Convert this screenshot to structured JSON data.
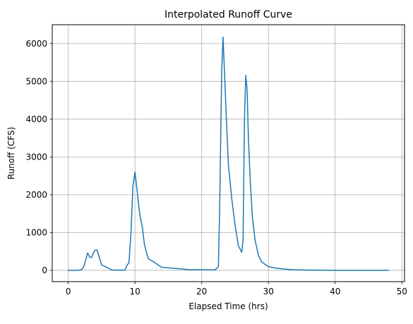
{
  "chart_data": {
    "type": "line",
    "title": "Interpolated Runoff Curve",
    "xlabel": "Elapsed Time (hrs)",
    "ylabel": "Runoff (CFS)",
    "xlim": [
      -2.4,
      50.4
    ],
    "ylim": [
      -300,
      6500
    ],
    "xticks": [
      0,
      10,
      20,
      30,
      40,
      50
    ],
    "yticks": [
      0,
      1000,
      2000,
      3000,
      4000,
      5000,
      6000
    ],
    "grid": true,
    "series": [
      {
        "color": "#1f77b4",
        "x": [
          0,
          1.5,
          2.0,
          2.3,
          2.6,
          2.9,
          3.2,
          3.5,
          3.8,
          4.0,
          4.3,
          4.6,
          5.0,
          6.0,
          6.5,
          7.0,
          8.0,
          8.5,
          8.8,
          9.1,
          9.4,
          9.7,
          10.0,
          10.2,
          10.5,
          10.8,
          11.1,
          11.4,
          11.7,
          12.0,
          13.0,
          14.0,
          16.0,
          18.0,
          20.0,
          22.0,
          22.5,
          22.7,
          23.0,
          23.2,
          23.4,
          23.7,
          24.0,
          24.5,
          25.0,
          25.5,
          26.0,
          26.2,
          26.4,
          26.6,
          26.8,
          27.0,
          27.3,
          27.6,
          28.0,
          28.5,
          29.0,
          30.0,
          31.0,
          32.0,
          33.0,
          34.0,
          36.0,
          40.0,
          44.0,
          48.0
        ],
        "y": [
          0,
          0,
          20,
          90,
          260,
          460,
          350,
          340,
          470,
          530,
          540,
          380,
          140,
          60,
          10,
          5,
          5,
          5,
          130,
          200,
          1000,
          2250,
          2600,
          2300,
          1800,
          1400,
          1150,
          700,
          480,
          310,
          200,
          80,
          50,
          20,
          15,
          10,
          100,
          1700,
          5300,
          6170,
          5300,
          4000,
          2800,
          1900,
          1200,
          650,
          480,
          800,
          3900,
          5160,
          4800,
          3500,
          2300,
          1400,
          800,
          400,
          220,
          100,
          60,
          40,
          25,
          15,
          5,
          0,
          0,
          0
        ]
      }
    ]
  }
}
